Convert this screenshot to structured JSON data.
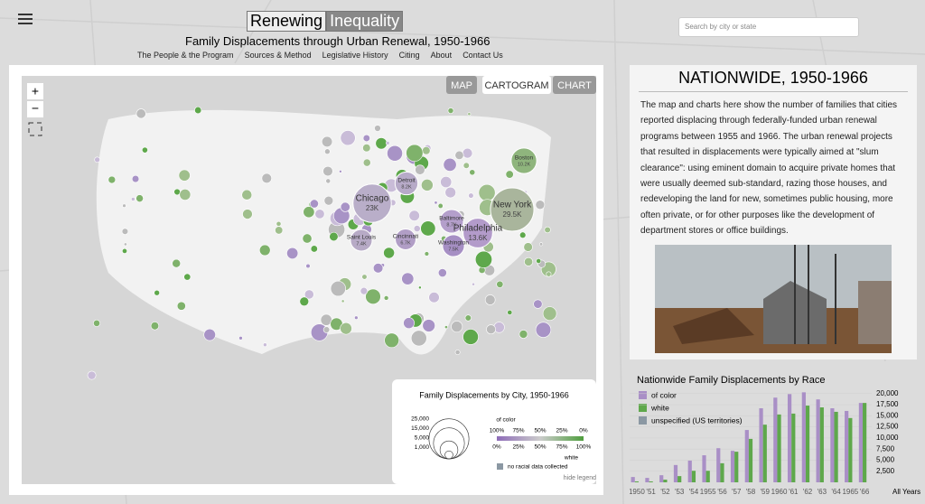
{
  "header": {
    "title_part1": "Renewing",
    "title_part2": "Inequality",
    "subtitle": "Family Displacements through Urban Renewal, 1950-1966",
    "nav": [
      "The People & the Program",
      "Sources & Method",
      "Legislative History",
      "Citing",
      "About",
      "Contact Us"
    ],
    "search_placeholder": "Search by city or state"
  },
  "map": {
    "view_buttons": [
      "MAP",
      "CARTOGRAM",
      "CHART"
    ],
    "zoom_in": "+",
    "zoom_out": "−",
    "cities": [
      {
        "name": "Chicago",
        "value": 23000,
        "value_label": "23K",
        "color": "#b9aec9"
      },
      {
        "name": "New York",
        "value": 29500,
        "value_label": "29.5K",
        "color": "#a9b59c"
      },
      {
        "name": "Boston",
        "value": 10200,
        "value_label": "10.2K",
        "color": "#8fb57d"
      },
      {
        "name": "Detroit",
        "value": 8200,
        "value_label": "8.2K",
        "color": "#b7aac8"
      },
      {
        "name": "Baltimore",
        "value": 8700,
        "value_label": "8.7K",
        "color": "#b49fcb"
      },
      {
        "name": "Philadelphia",
        "value": 13600,
        "value_label": "13.6K",
        "color": "#b39bca"
      },
      {
        "name": "Cincinnati",
        "value": 6700,
        "value_label": "6.7K",
        "color": "#b19ec6"
      },
      {
        "name": "Saint Louis",
        "value": 7400,
        "value_label": "7.4K",
        "color": "#b7aac6"
      },
      {
        "name": "Washington",
        "value": 7500,
        "value_label": "7.5K",
        "color": "#a68fc4"
      }
    ],
    "legend": {
      "title": "Family Displacements by City, 1950-1966",
      "size_ticks": [
        {
          "value": 25000,
          "label": "25,000"
        },
        {
          "value": 15000,
          "label": "15,000"
        },
        {
          "value": 5000,
          "label": "5,000"
        },
        {
          "value": 1000,
          "label": "1,000"
        }
      ],
      "color_top_title": "of color",
      "color_top_ticks": [
        "100%",
        "75%",
        "50%",
        "25%",
        "0%"
      ],
      "color_bottom_ticks": [
        "0%",
        "25%",
        "50%",
        "75%",
        "100%"
      ],
      "color_bottom_title": "white",
      "no_data": "no racial data collected",
      "hide": "hide legend"
    }
  },
  "panel": {
    "heading": "NATIONWIDE, 1950-1966",
    "text": "The map and charts here show the number of families that cities reported displacing through federally-funded urban renewal programs between 1955 and 1966. The urban renewal projects that resulted in displacements were typically aimed at \"slum clearance\": using eminent domain to acquire private homes that were usually deemed sub-standard, razing those houses, and redeveloping the land for new, sometimes public housing, more often private, or for other purposes like the development of department stores or office buildings."
  },
  "chart_data": {
    "type": "bar",
    "title": "Nationwide Family Displacements by Race",
    "categories": [
      "1950",
      "'51",
      "'52",
      "'53",
      "'54",
      "1955",
      "'56",
      "'57",
      "'58",
      "'59",
      "1960",
      "'61",
      "'62",
      "'63",
      "'64",
      "1965",
      "'66"
    ],
    "series": [
      {
        "name": "of color",
        "color": "#a98fc6",
        "values": [
          1200,
          1000,
          1600,
          3900,
          4900,
          6100,
          7700,
          7100,
          11800,
          16700,
          19100,
          19900,
          20300,
          18700,
          16700,
          16100,
          17900
        ]
      },
      {
        "name": "white",
        "color": "#5ea84b",
        "values": [
          200,
          200,
          600,
          1400,
          2600,
          2600,
          4300,
          6900,
          9800,
          13000,
          15300,
          15500,
          17300,
          16900,
          15900,
          14500,
          17900
        ]
      },
      {
        "name": "unspecified (US territories)",
        "color": "#8b98a3",
        "values": [
          0,
          0,
          0,
          0,
          0,
          0,
          0,
          0,
          0,
          0,
          0,
          0,
          0,
          0,
          0,
          0,
          0
        ]
      }
    ],
    "ylim": [
      0,
      22000
    ],
    "yticks": [
      {
        "value": 2500,
        "label": "2,500"
      },
      {
        "value": 5000,
        "label": "5,000"
      },
      {
        "value": 7500,
        "label": "7,500"
      },
      {
        "value": 10000,
        "label": "10,000"
      },
      {
        "value": 12500,
        "label": "12,500"
      },
      {
        "value": 15000,
        "label": "15,000"
      },
      {
        "value": 17500,
        "label": "17,500"
      },
      {
        "value": 20000,
        "label": "20,000"
      }
    ],
    "all_years_label": "All Years"
  }
}
